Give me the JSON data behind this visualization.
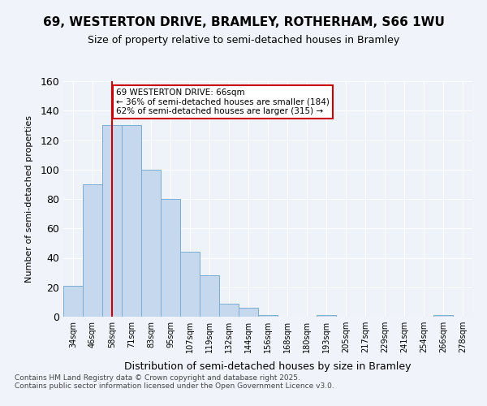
{
  "title_line1": "69, WESTERTON DRIVE, BRAMLEY, ROTHERHAM, S66 1WU",
  "title_line2": "Size of property relative to semi-detached houses in Bramley",
  "xlabel": "Distribution of semi-detached houses by size in Bramley",
  "ylabel": "Number of semi-detached properties",
  "footnote": "Contains HM Land Registry data © Crown copyright and database right 2025.\nContains public sector information licensed under the Open Government Licence v3.0.",
  "bin_labels": [
    "34sqm",
    "46sqm",
    "58sqm",
    "71sqm",
    "83sqm",
    "95sqm",
    "107sqm",
    "119sqm",
    "132sqm",
    "144sqm",
    "156sqm",
    "168sqm",
    "180sqm",
    "193sqm",
    "205sqm",
    "217sqm",
    "229sqm",
    "241sqm",
    "254sqm",
    "266sqm",
    "278sqm"
  ],
  "counts": [
    21,
    90,
    130,
    130,
    100,
    80,
    44,
    28,
    9,
    6,
    1,
    0,
    0,
    1,
    0,
    0,
    0,
    0,
    0,
    1,
    0
  ],
  "bar_color": "#c5d8ed",
  "bar_edge_color": "#7aadd4",
  "property_size": 66,
  "property_bin_index": 2,
  "vline_color": "#cc0000",
  "annotation_text": "69 WESTERTON DRIVE: 66sqm\n← 36% of semi-detached houses are smaller (184)\n62% of semi-detached houses are larger (315) →",
  "annotation_box_color": "#ffffff",
  "annotation_box_edge": "#cc0000",
  "ylim": [
    0,
    160
  ],
  "yticks": [
    0,
    20,
    40,
    60,
    80,
    100,
    120,
    140,
    160
  ],
  "background_color": "#f0f4fa",
  "plot_bg_color": "#eef2f9"
}
